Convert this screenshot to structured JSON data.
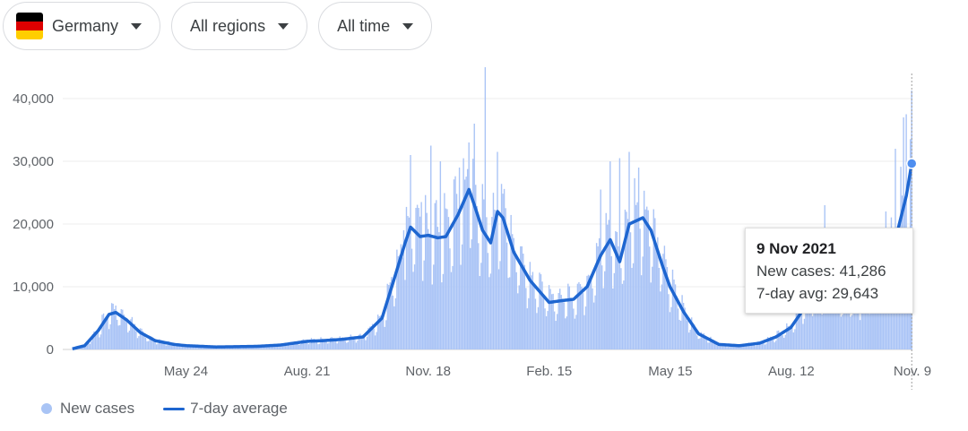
{
  "filters": {
    "country": "Germany",
    "region": "All regions",
    "period": "All time"
  },
  "colors": {
    "bars": "#aac4f6",
    "line": "#1e66d0",
    "grid": "#ececec",
    "flag_black": "#000000",
    "flag_red": "#dd0000",
    "flag_gold": "#ffce00"
  },
  "tooltip": {
    "date": "9 Nov 2021",
    "new_cases": "New cases: 41,286",
    "avg": "7-day avg: 29,643"
  },
  "legend": {
    "cases_label": "New cases",
    "avg_label": "7-day average"
  },
  "chart_data": {
    "type": "bar",
    "title": "",
    "xlabel": "",
    "ylabel": "",
    "x_start": "2020-03-01",
    "x_end": "2021-11-09",
    "ylim": [
      0,
      45000
    ],
    "y_ticks": [
      0,
      10000,
      20000,
      30000,
      40000
    ],
    "y_tick_labels": [
      "0",
      "10,000",
      "20,000",
      "30,000",
      "40,000"
    ],
    "x_ticks": [
      "2020-05-24",
      "2020-08-21",
      "2020-11-18",
      "2021-02-15",
      "2021-05-15",
      "2021-08-12",
      "2021-11-09"
    ],
    "x_tick_labels": [
      "May 24",
      "Aug. 21",
      "Nov. 18",
      "Feb. 15",
      "May 15",
      "Aug. 12",
      "Nov. 9"
    ],
    "grid": true,
    "legend_position": "bottom-left",
    "series": [
      {
        "name": "7-day average",
        "type": "line",
        "points": [
          [
            "2020-03-01",
            100
          ],
          [
            "2020-03-10",
            600
          ],
          [
            "2020-03-20",
            3000
          ],
          [
            "2020-03-28",
            5600
          ],
          [
            "2020-04-02",
            5900
          ],
          [
            "2020-04-10",
            4700
          ],
          [
            "2020-04-20",
            2700
          ],
          [
            "2020-05-01",
            1400
          ],
          [
            "2020-05-15",
            800
          ],
          [
            "2020-05-24",
            600
          ],
          [
            "2020-06-15",
            400
          ],
          [
            "2020-07-01",
            450
          ],
          [
            "2020-07-15",
            500
          ],
          [
            "2020-08-01",
            700
          ],
          [
            "2020-08-21",
            1300
          ],
          [
            "2020-09-01",
            1400
          ],
          [
            "2020-09-15",
            1600
          ],
          [
            "2020-10-01",
            2000
          ],
          [
            "2020-10-15",
            5000
          ],
          [
            "2020-10-25",
            12000
          ],
          [
            "2020-11-01",
            17000
          ],
          [
            "2020-11-05",
            19500
          ],
          [
            "2020-11-12",
            18000
          ],
          [
            "2020-11-18",
            18200
          ],
          [
            "2020-11-25",
            17800
          ],
          [
            "2020-12-01",
            18000
          ],
          [
            "2020-12-10",
            21500
          ],
          [
            "2020-12-18",
            25500
          ],
          [
            "2020-12-22",
            23000
          ],
          [
            "2020-12-28",
            19000
          ],
          [
            "2021-01-03",
            17000
          ],
          [
            "2021-01-08",
            22000
          ],
          [
            "2021-01-12",
            21000
          ],
          [
            "2021-01-20",
            15500
          ],
          [
            "2021-02-01",
            11000
          ],
          [
            "2021-02-15",
            7500
          ],
          [
            "2021-02-25",
            7800
          ],
          [
            "2021-03-05",
            8000
          ],
          [
            "2021-03-15",
            10000
          ],
          [
            "2021-03-25",
            15000
          ],
          [
            "2021-04-01",
            17500
          ],
          [
            "2021-04-08",
            14000
          ],
          [
            "2021-04-15",
            20000
          ],
          [
            "2021-04-25",
            21000
          ],
          [
            "2021-05-01",
            19000
          ],
          [
            "2021-05-10",
            13000
          ],
          [
            "2021-05-15",
            10000
          ],
          [
            "2021-05-25",
            6000
          ],
          [
            "2021-06-05",
            2500
          ],
          [
            "2021-06-20",
            800
          ],
          [
            "2021-07-05",
            600
          ],
          [
            "2021-07-20",
            1000
          ],
          [
            "2021-08-01",
            2000
          ],
          [
            "2021-08-12",
            3500
          ],
          [
            "2021-08-20",
            6000
          ],
          [
            "2021-09-01",
            10000
          ],
          [
            "2021-09-15",
            8500
          ],
          [
            "2021-10-01",
            8000
          ],
          [
            "2021-10-15",
            10500
          ],
          [
            "2021-10-25",
            15000
          ],
          [
            "2021-11-01",
            21000
          ],
          [
            "2021-11-05",
            24500
          ],
          [
            "2021-11-09",
            29643
          ]
        ]
      },
      {
        "name": "New cases",
        "type": "bar",
        "peaks": [
          [
            "2020-04-02",
            7000
          ],
          [
            "2020-10-31",
            19000
          ],
          [
            "2020-11-05",
            31000
          ],
          [
            "2020-11-13",
            23500
          ],
          [
            "2020-11-20",
            32500
          ],
          [
            "2020-11-27",
            30000
          ],
          [
            "2020-12-11",
            29000
          ],
          [
            "2020-12-18",
            33000
          ],
          [
            "2020-12-22",
            36000
          ],
          [
            "2020-12-30",
            45000
          ],
          [
            "2021-01-08",
            31500
          ],
          [
            "2021-03-25",
            25500
          ],
          [
            "2021-04-01",
            30000
          ],
          [
            "2021-04-08",
            30500
          ],
          [
            "2021-04-15",
            31500
          ],
          [
            "2021-04-22",
            29000
          ],
          [
            "2021-09-06",
            23000
          ],
          [
            "2021-10-21",
            22000
          ],
          [
            "2021-10-28",
            32000
          ],
          [
            "2021-11-03",
            37000
          ],
          [
            "2021-11-05",
            37500
          ],
          [
            "2021-11-09",
            41286
          ]
        ]
      }
    ]
  }
}
